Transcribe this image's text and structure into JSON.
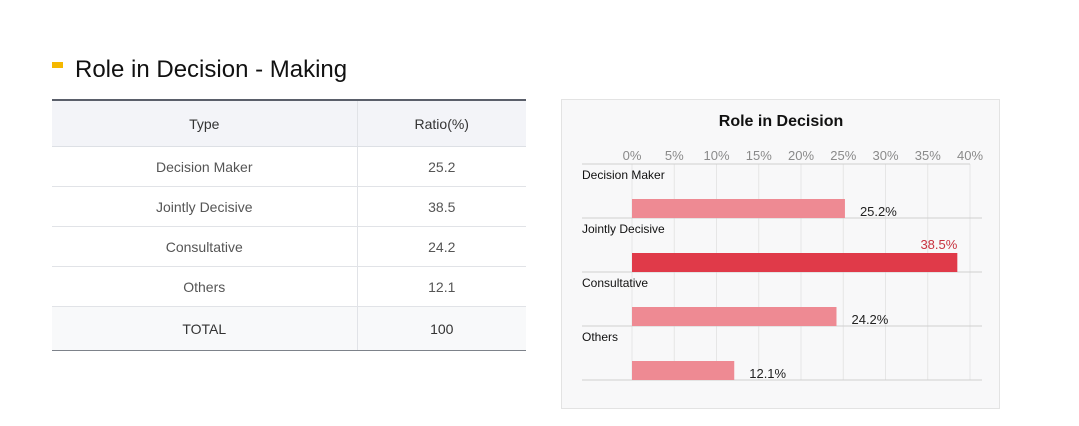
{
  "section": {
    "title": "Role in Decision - Making"
  },
  "table": {
    "headers": [
      "Type",
      "Ratio(%)"
    ],
    "rows": [
      {
        "type": "Decision Maker",
        "ratio": "25.2"
      },
      {
        "type": "Jointly Decisive",
        "ratio": "38.5"
      },
      {
        "type": "Consultative",
        "ratio": "24.2"
      },
      {
        "type": "Others",
        "ratio": "12.1"
      }
    ],
    "total": {
      "label": "TOTAL",
      "value": "100"
    }
  },
  "chart_data": {
    "type": "bar",
    "orientation": "horizontal",
    "title": "Role in Decision",
    "categories": [
      "Decision Maker",
      "Jointly Decisive",
      "Consultative",
      "Others"
    ],
    "values": [
      25.2,
      38.5,
      24.2,
      12.1
    ],
    "data_labels": [
      "25.2%",
      "38.5%",
      "24.2%",
      "12.1%"
    ],
    "xlim": [
      0,
      40
    ],
    "x_ticks": [
      "0%",
      "5%",
      "10%",
      "15%",
      "20%",
      "25%",
      "30%",
      "35%",
      "40%"
    ],
    "grid": true,
    "colors": {
      "bar": "#ee8a93",
      "highlight": "#e03a49",
      "highlight_label": "#c8323f"
    },
    "highlight_index": 1
  }
}
